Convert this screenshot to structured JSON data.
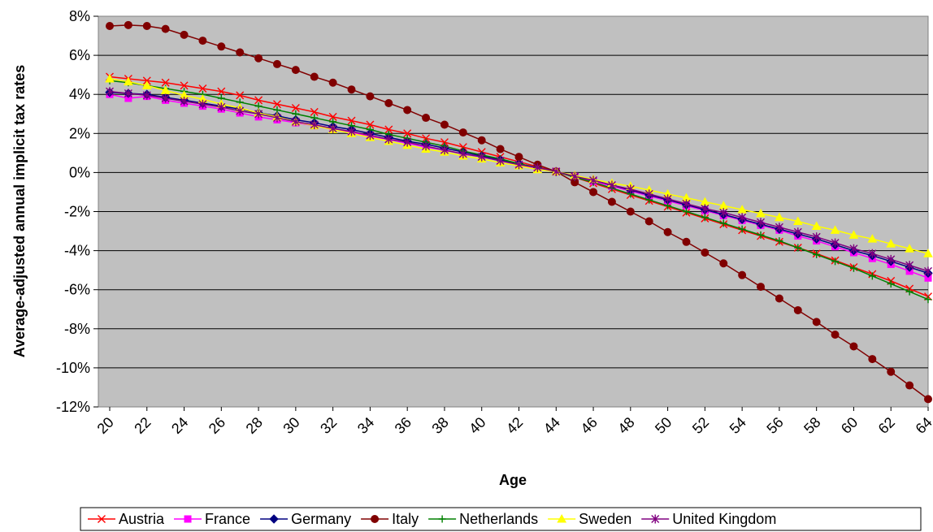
{
  "chart_data": {
    "type": "line",
    "title": "",
    "xlabel": "Age",
    "ylabel": "Average-adjusted annual implicit tax rates",
    "x": [
      20,
      21,
      22,
      23,
      24,
      25,
      26,
      27,
      28,
      29,
      30,
      31,
      32,
      33,
      34,
      35,
      36,
      37,
      38,
      39,
      40,
      41,
      42,
      43,
      44,
      45,
      46,
      47,
      48,
      49,
      50,
      51,
      52,
      53,
      54,
      55,
      56,
      57,
      58,
      59,
      60,
      61,
      62,
      63,
      64
    ],
    "x_tick_labels": [
      "20",
      "22",
      "24",
      "26",
      "28",
      "30",
      "32",
      "34",
      "36",
      "38",
      "40",
      "42",
      "44",
      "46",
      "48",
      "50",
      "52",
      "54",
      "56",
      "58",
      "60",
      "62",
      "64"
    ],
    "xlim": [
      20,
      64
    ],
    "ylim": [
      -12,
      8
    ],
    "y_tick_labels": [
      "8%",
      "6%",
      "4%",
      "2%",
      "0%",
      "-2%",
      "-4%",
      "-6%",
      "-8%",
      "-10%",
      "-12%"
    ],
    "grid": true,
    "plot_background": "#c0c0c0",
    "legend_position": "bottom",
    "series": [
      {
        "name": "Austria",
        "color": "#ff0000",
        "marker": "x",
        "values": [
          4.9,
          4.8,
          4.7,
          4.6,
          4.45,
          4.3,
          4.15,
          3.95,
          3.7,
          3.5,
          3.3,
          3.1,
          2.85,
          2.65,
          2.45,
          2.2,
          2.0,
          1.75,
          1.55,
          1.3,
          1.05,
          0.8,
          0.55,
          0.3,
          0.05,
          -0.25,
          -0.55,
          -0.85,
          -1.15,
          -1.45,
          -1.75,
          -2.05,
          -2.35,
          -2.65,
          -2.95,
          -3.25,
          -3.55,
          -3.85,
          -4.15,
          -4.5,
          -4.85,
          -5.2,
          -5.55,
          -5.95,
          -6.35
        ]
      },
      {
        "name": "France",
        "color": "#ff00ff",
        "marker": "square",
        "values": [
          4.0,
          3.8,
          3.9,
          3.7,
          3.55,
          3.4,
          3.25,
          3.05,
          2.85,
          2.7,
          2.55,
          2.4,
          2.2,
          2.05,
          1.85,
          1.7,
          1.5,
          1.3,
          1.15,
          0.95,
          0.8,
          0.6,
          0.4,
          0.2,
          0.05,
          -0.2,
          -0.45,
          -0.7,
          -0.95,
          -1.2,
          -1.45,
          -1.7,
          -1.95,
          -2.2,
          -2.45,
          -2.7,
          -2.95,
          -3.25,
          -3.5,
          -3.8,
          -4.1,
          -4.4,
          -4.7,
          -5.05,
          -5.4
        ]
      },
      {
        "name": "Germany",
        "color": "#000080",
        "marker": "diamond",
        "values": [
          4.1,
          4.05,
          4.0,
          3.85,
          3.7,
          3.55,
          3.4,
          3.25,
          3.05,
          2.9,
          2.7,
          2.55,
          2.35,
          2.2,
          2.0,
          1.8,
          1.6,
          1.45,
          1.25,
          1.05,
          0.85,
          0.65,
          0.45,
          0.25,
          0.05,
          -0.2,
          -0.4,
          -0.65,
          -0.9,
          -1.15,
          -1.4,
          -1.65,
          -1.9,
          -2.15,
          -2.4,
          -2.65,
          -2.9,
          -3.15,
          -3.4,
          -3.7,
          -4.0,
          -4.25,
          -4.55,
          -4.85,
          -5.15
        ]
      },
      {
        "name": "Italy",
        "color": "#800000",
        "marker": "circle",
        "values": [
          7.5,
          7.55,
          7.5,
          7.35,
          7.05,
          6.75,
          6.45,
          6.15,
          5.85,
          5.55,
          5.25,
          4.9,
          4.6,
          4.25,
          3.9,
          3.55,
          3.2,
          2.8,
          2.45,
          2.05,
          1.65,
          1.2,
          0.8,
          0.4,
          0.05,
          -0.5,
          -1.0,
          -1.5,
          -2.0,
          -2.5,
          -3.05,
          -3.55,
          -4.1,
          -4.65,
          -5.25,
          -5.85,
          -6.45,
          -7.05,
          -7.65,
          -8.3,
          -8.9,
          -9.55,
          -10.2,
          -10.9,
          -11.6
        ]
      },
      {
        "name": "Netherlands",
        "color": "#008000",
        "marker": "plus",
        "values": [
          4.7,
          4.6,
          4.45,
          4.3,
          4.15,
          4.0,
          3.8,
          3.6,
          3.4,
          3.2,
          3.0,
          2.8,
          2.6,
          2.4,
          2.2,
          1.95,
          1.75,
          1.55,
          1.35,
          1.1,
          0.9,
          0.7,
          0.45,
          0.25,
          0.05,
          -0.25,
          -0.5,
          -0.8,
          -1.1,
          -1.4,
          -1.7,
          -2.0,
          -2.3,
          -2.6,
          -2.9,
          -3.2,
          -3.5,
          -3.85,
          -4.2,
          -4.55,
          -4.9,
          -5.3,
          -5.7,
          -6.1,
          -6.5
        ]
      },
      {
        "name": "Sweden",
        "color": "#ffff00",
        "marker": "triangle",
        "values": [
          4.8,
          4.65,
          4.45,
          4.2,
          3.95,
          3.75,
          3.5,
          3.3,
          3.05,
          2.85,
          2.6,
          2.4,
          2.2,
          2.0,
          1.8,
          1.6,
          1.4,
          1.2,
          1.05,
          0.85,
          0.7,
          0.5,
          0.35,
          0.15,
          0.05,
          -0.15,
          -0.35,
          -0.55,
          -0.7,
          -0.9,
          -1.1,
          -1.3,
          -1.5,
          -1.7,
          -1.9,
          -2.1,
          -2.3,
          -2.5,
          -2.75,
          -2.95,
          -3.2,
          -3.4,
          -3.65,
          -3.9,
          -4.15
        ]
      },
      {
        "name": "United Kingdom",
        "color": "#800080",
        "marker": "star",
        "values": [
          4.15,
          4.05,
          3.95,
          3.8,
          3.65,
          3.5,
          3.35,
          3.15,
          3.0,
          2.8,
          2.6,
          2.45,
          2.25,
          2.1,
          1.9,
          1.7,
          1.55,
          1.35,
          1.15,
          0.95,
          0.8,
          0.6,
          0.4,
          0.25,
          0.05,
          -0.2,
          -0.4,
          -0.65,
          -0.85,
          -1.1,
          -1.35,
          -1.6,
          -1.85,
          -2.05,
          -2.3,
          -2.55,
          -2.8,
          -3.05,
          -3.3,
          -3.6,
          -3.9,
          -4.15,
          -4.45,
          -4.75,
          -5.05
        ]
      }
    ]
  }
}
